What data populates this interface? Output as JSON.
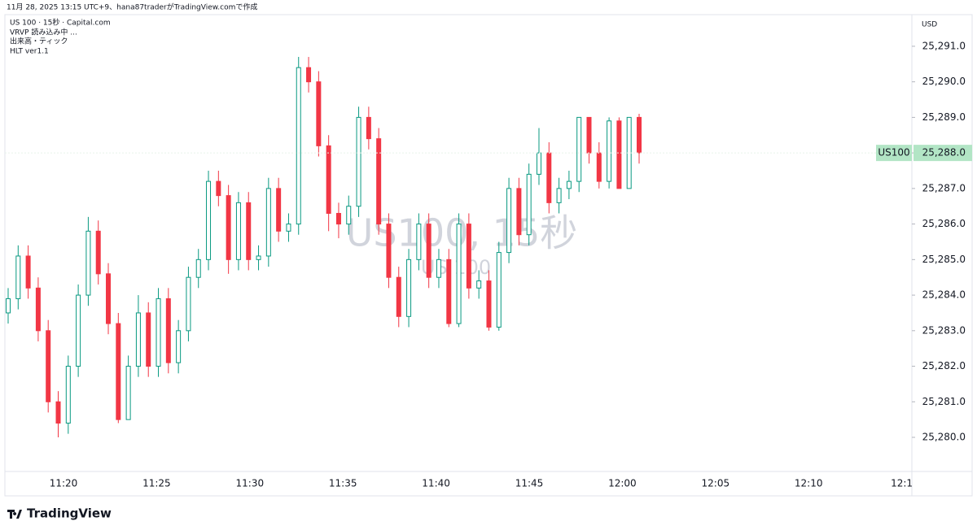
{
  "header": {
    "caption": "11月 28, 2025 13:15 UTC+9、hana87traderがTradingView.comで作成",
    "legend": [
      "US 100 · 15秒 · Capital.com",
      "VRVP 読み込み中 ...",
      "出来高・ティック",
      "HLT ver1.1"
    ],
    "currency": "USD"
  },
  "chart_data": {
    "type": "candlestick",
    "watermark": "US100, 15秒",
    "watermark_sub": "US 100",
    "up_color": "#089981",
    "down_color": "#f23645",
    "open": [
      25283.5,
      25283.9,
      25285.1,
      25284.2,
      25283.0,
      25281.0,
      25280.4,
      25282.0,
      25284.0,
      25285.8,
      25284.6,
      25283.2,
      25280.5,
      25282.0,
      25283.5,
      25282.0,
      25283.9,
      25282.1,
      25283.0,
      25284.5,
      25285.0,
      25287.2,
      25286.8,
      25285.0,
      25286.6,
      25285.0,
      25285.1,
      25287.0,
      25285.8,
      25286.0,
      25290.4,
      25290.0,
      25288.2,
      25286.3,
      25286.0,
      25286.5,
      25289.0,
      25288.4,
      25286.0,
      25284.5,
      25283.4,
      25285.0,
      25286.0,
      25284.5,
      25285.0,
      25283.2,
      25286.0,
      25284.2,
      25284.4,
      25283.1,
      25285.2,
      25287.0,
      25285.7,
      25287.4,
      25288.0,
      25286.6,
      25287.0,
      25287.2,
      25289.0,
      25288.0,
      25287.2,
      25288.9,
      25287.0,
      25289.0
    ],
    "high": [
      25284.2,
      25285.4,
      25285.4,
      25284.5,
      25283.3,
      25281.3,
      25282.3,
      25284.3,
      25286.2,
      25286.1,
      25284.9,
      25283.5,
      25282.3,
      25284.0,
      25283.8,
      25284.2,
      25284.2,
      25283.3,
      25284.8,
      25285.3,
      25287.5,
      25287.5,
      25287.1,
      25286.9,
      25286.9,
      25285.4,
      25287.3,
      25287.3,
      25286.3,
      25290.7,
      25290.7,
      25290.3,
      25288.5,
      25286.6,
      25286.8,
      25289.3,
      25289.3,
      25288.7,
      25286.3,
      25284.8,
      25285.3,
      25286.3,
      25286.3,
      25285.3,
      25285.3,
      25286.3,
      25286.3,
      25284.7,
      25284.7,
      25285.5,
      25287.3,
      25287.3,
      25287.7,
      25288.7,
      25288.3,
      25287.3,
      25287.5,
      25289.0,
      25289.0,
      25288.3,
      25289.0,
      25289.0,
      25289.0,
      25289.1
    ],
    "low": [
      25283.2,
      25283.6,
      25283.9,
      25282.7,
      25280.7,
      25280.0,
      25280.1,
      25281.7,
      25283.7,
      25284.3,
      25282.9,
      25280.4,
      25280.5,
      25281.7,
      25281.7,
      25281.7,
      25281.8,
      25281.8,
      25282.7,
      25284.2,
      25284.7,
      25286.5,
      25284.6,
      25284.7,
      25284.7,
      25284.7,
      25284.8,
      25285.5,
      25285.5,
      25285.7,
      25289.7,
      25287.9,
      25285.8,
      25285.6,
      25285.7,
      25286.2,
      25288.1,
      25285.7,
      25284.2,
      25283.1,
      25283.1,
      25284.7,
      25284.2,
      25284.2,
      25283.1,
      25283.1,
      25283.9,
      25283.9,
      25283.0,
      25283.0,
      25284.9,
      25285.4,
      25285.4,
      25287.1,
      25286.3,
      25286.3,
      25286.7,
      25286.9,
      25287.7,
      25287.0,
      25287.0,
      25287.0,
      25287.0,
      25287.7
    ],
    "close": [
      25283.9,
      25285.1,
      25284.2,
      25283.0,
      25281.0,
      25280.4,
      25282.0,
      25284.0,
      25285.8,
      25284.6,
      25283.2,
      25280.5,
      25282.0,
      25283.5,
      25282.0,
      25283.9,
      25282.1,
      25283.0,
      25284.5,
      25285.0,
      25287.2,
      25286.8,
      25285.0,
      25286.6,
      25285.0,
      25285.1,
      25287.0,
      25285.8,
      25286.0,
      25290.4,
      25290.0,
      25288.2,
      25286.3,
      25286.0,
      25286.5,
      25289.0,
      25288.4,
      25286.0,
      25284.5,
      25283.4,
      25285.0,
      25286.0,
      25284.5,
      25285.0,
      25283.2,
      25286.0,
      25284.2,
      25284.4,
      25283.1,
      25285.2,
      25287.0,
      25285.7,
      25287.4,
      25288.0,
      25286.6,
      25287.0,
      25287.2,
      25289.0,
      25288.0,
      25287.2,
      25288.9,
      25287.0,
      25289.0,
      25288.0
    ],
    "xticks": [
      "11:20",
      "11:25",
      "11:30",
      "11:35",
      "11:40",
      "11:45",
      "12:00",
      "12:05",
      "12:10",
      "12:1"
    ],
    "ylim": [
      25279.04,
      25291.89
    ],
    "yticks": [
      {
        "value": 25280,
        "label": "25,280.0"
      },
      {
        "value": 25281,
        "label": "25,281.0"
      },
      {
        "value": 25282,
        "label": "25,282.0"
      },
      {
        "value": 25283,
        "label": "25,283.0"
      },
      {
        "value": 25284,
        "label": "25,284.0"
      },
      {
        "value": 25285,
        "label": "25,285.0"
      },
      {
        "value": 25286,
        "label": "25,286.0"
      },
      {
        "value": 25287,
        "label": "25,287.0"
      },
      {
        "value": 25288,
        "label": "25,288.0"
      },
      {
        "value": 25289,
        "label": "25,289.0"
      },
      {
        "value": 25290,
        "label": "25,290.0"
      },
      {
        "value": 25291,
        "label": "25,291.0"
      }
    ],
    "last_price": {
      "name": "US100",
      "value": 25288.0,
      "label": "25,288.0",
      "color": "#b2e5c5"
    }
  },
  "footer": {
    "brand": "TradingView"
  }
}
